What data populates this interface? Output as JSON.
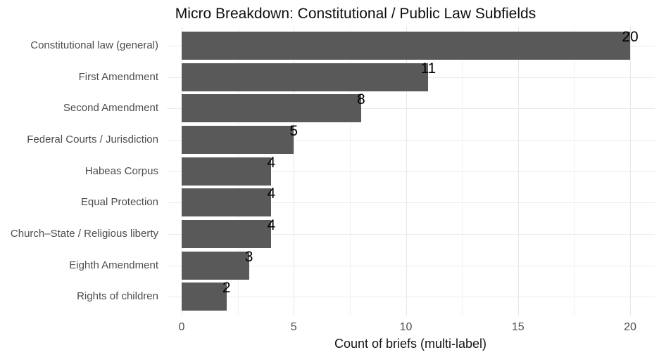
{
  "title": "Micro Breakdown: Constitutional / Public Law Subfields",
  "chart_data": {
    "type": "bar",
    "orientation": "horizontal",
    "title": "Micro Breakdown: Constitutional / Public Law Subfields",
    "categories": [
      "Constitutional law (general)",
      "First Amendment",
      "Second Amendment",
      "Federal Courts / Jurisdiction",
      "Habeas Corpus",
      "Equal Protection",
      "Church–State / Religious liberty",
      "Eighth Amendment",
      "Rights of children"
    ],
    "values": [
      20,
      11,
      8,
      5,
      4,
      4,
      4,
      3,
      2
    ],
    "value_labels": [
      "20",
      "11",
      "8",
      "5",
      "4",
      "4",
      "4",
      "3",
      "2"
    ],
    "xlabel": "Count of briefs (multi-label)",
    "ylabel": "",
    "xlim": [
      0,
      20
    ],
    "x_ticks": [
      0,
      5,
      10,
      15,
      20
    ],
    "x_tick_labels": [
      "0",
      "5",
      "10",
      "15",
      "20"
    ],
    "x_minor_ticks": [
      2.5,
      7.5,
      12.5,
      17.5
    ],
    "grid": true,
    "legend_position": "none",
    "colors": {
      "bar_fill": "#595959",
      "background": "#ffffff",
      "grid_major": "#e7e7e7",
      "grid_minor": "#f2f2f2",
      "axis_text": "#4d4d4d",
      "value_label": "#000000",
      "title_text": "#0d0d0d"
    }
  }
}
